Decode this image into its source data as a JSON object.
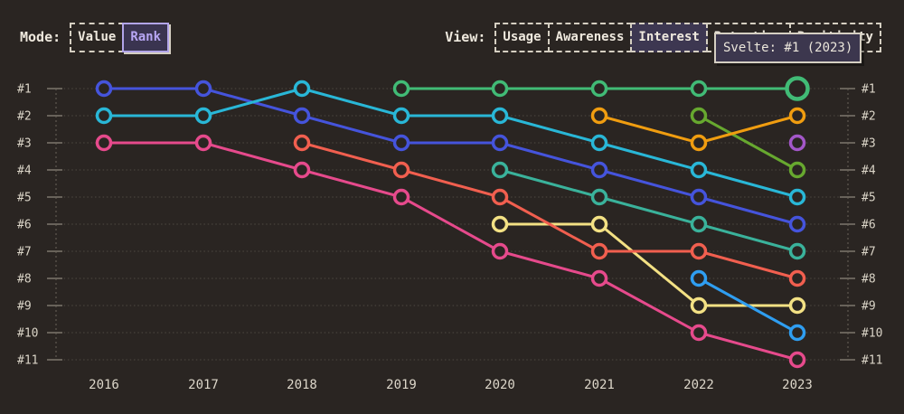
{
  "header": {
    "mode": {
      "label": "Mode:",
      "options": [
        {
          "label": "Value",
          "selected": false
        },
        {
          "label": "Rank",
          "selected": true
        }
      ]
    },
    "view": {
      "label": "View:",
      "options": [
        {
          "label": "Usage",
          "selected": false
        },
        {
          "label": "Awareness",
          "selected": false
        },
        {
          "label": "Interest",
          "selected": true
        },
        {
          "label": "Retention",
          "selected": false
        },
        {
          "label": "Positivity",
          "selected": false
        }
      ]
    }
  },
  "tooltip": {
    "text": "Svelte: #1 (2023)"
  },
  "chart_data": {
    "type": "line",
    "variant": "bump-ranking",
    "title": "",
    "x": [
      "2016",
      "2017",
      "2018",
      "2019",
      "2020",
      "2021",
      "2022",
      "2023"
    ],
    "rank_labels": [
      "#1",
      "#2",
      "#3",
      "#4",
      "#5",
      "#6",
      "#7",
      "#8",
      "#9",
      "#10",
      "#11"
    ],
    "y_inverted": true,
    "ylim": [
      1,
      11
    ],
    "grid": "dotted-horizontal",
    "rank_axis_on_both_sides": true,
    "series": [
      {
        "name": "indigo",
        "color": "#4554dc",
        "ranks": [
          1,
          1,
          2,
          3,
          3,
          4,
          5,
          6
        ]
      },
      {
        "name": "cyan",
        "color": "#29b7d7",
        "ranks": [
          2,
          2,
          1,
          2,
          2,
          3,
          4,
          5
        ]
      },
      {
        "name": "pink",
        "color": "#e64a8c",
        "ranks": [
          3,
          3,
          4,
          5,
          7,
          8,
          10,
          11
        ]
      },
      {
        "name": "teal",
        "color": "#3ab29b",
        "ranks": [
          null,
          null,
          null,
          null,
          4,
          5,
          6,
          7
        ]
      },
      {
        "name": "yellow",
        "color": "#f3e184",
        "ranks": [
          null,
          null,
          null,
          null,
          6,
          6,
          9,
          9
        ]
      },
      {
        "name": "coral",
        "color": "#f15f4f",
        "ranks": [
          null,
          null,
          3,
          4,
          5,
          7,
          7,
          8
        ]
      },
      {
        "name": "sky",
        "color": "#2f9ef1",
        "ranks": [
          null,
          null,
          null,
          null,
          null,
          null,
          8,
          10
        ]
      },
      {
        "name": "lime",
        "color": "#67a82f",
        "ranks": [
          null,
          null,
          null,
          null,
          null,
          null,
          2,
          4
        ]
      },
      {
        "name": "orange",
        "color": "#f09d10",
        "ranks": [
          null,
          null,
          null,
          null,
          null,
          2,
          3,
          2
        ]
      },
      {
        "name": "purple",
        "color": "#a357c8",
        "ranks": [
          null,
          null,
          null,
          null,
          null,
          null,
          null,
          3
        ]
      },
      {
        "name": "Svelte",
        "color": "#41bb76",
        "ranks": [
          null,
          null,
          null,
          1,
          1,
          1,
          1,
          1
        ],
        "highlight_index": 7
      }
    ]
  },
  "colors": {
    "background": "#2a2522",
    "text": "#efe9de",
    "axis_text": "#dad4c7",
    "grid": "#4e4941",
    "tick": "#8e877b",
    "selected_fill": "#3d3751",
    "accent_purple": "#b7a6f3",
    "tooltip_bg": "#3c374e",
    "tooltip_border": "#d5cfc2"
  }
}
